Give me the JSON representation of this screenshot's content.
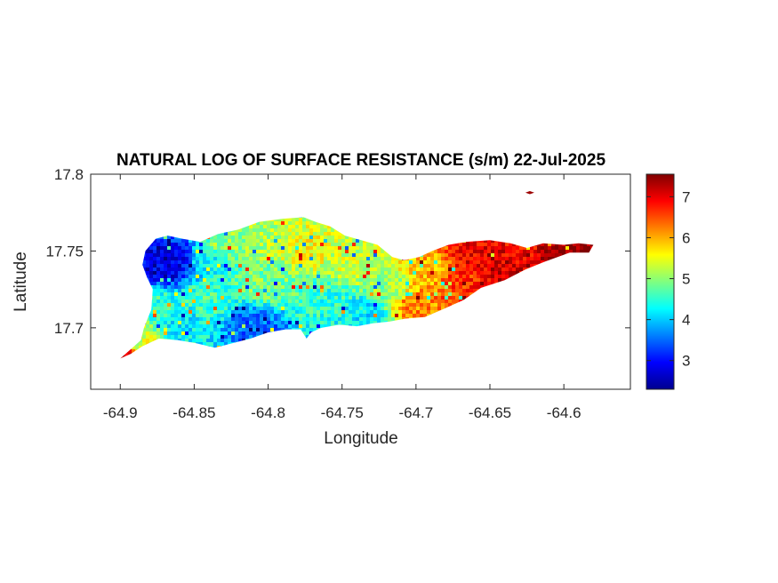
{
  "chart_data": {
    "type": "heatmap",
    "title": "NATURAL LOG OF SURFACE RESISTANCE (s/m) 22-Jul-2025",
    "xlabel": "Longitude",
    "ylabel": "Latitude",
    "xlim": [
      -64.92,
      -64.555
    ],
    "ylim": [
      17.66,
      17.8
    ],
    "x_ticks": [
      -64.9,
      -64.85,
      -64.8,
      -64.75,
      -64.7,
      -64.65,
      -64.6
    ],
    "x_tick_labels": [
      "-64.9",
      "-64.85",
      "-64.8",
      "-64.75",
      "-64.7",
      "-64.65",
      "-64.6"
    ],
    "y_ticks": [
      17.7,
      17.75,
      17.8
    ],
    "y_tick_labels": [
      "17.7",
      "17.75",
      "17.8"
    ],
    "colorbar": {
      "colormap": "jet",
      "range": [
        2.3,
        7.55
      ],
      "ticks": [
        3,
        4,
        5,
        6,
        7
      ],
      "tick_labels": [
        "3",
        "4",
        "5",
        "6",
        "7"
      ]
    },
    "grid": false,
    "island_outline": [
      [
        -64.9,
        17.68
      ],
      [
        -64.893,
        17.686
      ],
      [
        -64.886,
        17.692
      ],
      [
        -64.884,
        17.7
      ],
      [
        -64.879,
        17.712
      ],
      [
        -64.878,
        17.725
      ],
      [
        -64.882,
        17.733
      ],
      [
        -64.885,
        17.741
      ],
      [
        -64.883,
        17.75
      ],
      [
        -64.876,
        17.758
      ],
      [
        -64.868,
        17.76
      ],
      [
        -64.858,
        17.758
      ],
      [
        -64.846,
        17.756
      ],
      [
        -64.834,
        17.761
      ],
      [
        -64.82,
        17.764
      ],
      [
        -64.806,
        17.769
      ],
      [
        -64.79,
        17.771
      ],
      [
        -64.776,
        17.772
      ],
      [
        -64.768,
        17.769
      ],
      [
        -64.758,
        17.766
      ],
      [
        -64.748,
        17.76
      ],
      [
        -64.737,
        17.757
      ],
      [
        -64.726,
        17.754
      ],
      [
        -64.716,
        17.746
      ],
      [
        -64.708,
        17.744
      ],
      [
        -64.698,
        17.746
      ],
      [
        -64.689,
        17.75
      ],
      [
        -64.678,
        17.754
      ],
      [
        -64.666,
        17.756
      ],
      [
        -64.65,
        17.757
      ],
      [
        -64.636,
        17.755
      ],
      [
        -64.625,
        17.752
      ],
      [
        -64.614,
        17.755
      ],
      [
        -64.6,
        17.754
      ],
      [
        -64.59,
        17.755
      ],
      [
        -64.58,
        17.754
      ],
      [
        -64.583,
        17.749
      ],
      [
        -64.596,
        17.749
      ],
      [
        -64.613,
        17.743
      ],
      [
        -64.626,
        17.738
      ],
      [
        -64.64,
        17.731
      ],
      [
        -64.656,
        17.726
      ],
      [
        -64.668,
        17.718
      ],
      [
        -64.682,
        17.712
      ],
      [
        -64.694,
        17.707
      ],
      [
        -64.707,
        17.706
      ],
      [
        -64.718,
        17.704
      ],
      [
        -64.729,
        17.703
      ],
      [
        -64.74,
        17.701
      ],
      [
        -64.752,
        17.702
      ],
      [
        -64.764,
        17.7
      ],
      [
        -64.771,
        17.697
      ],
      [
        -64.774,
        17.693
      ],
      [
        -64.778,
        17.699
      ],
      [
        -64.788,
        17.699
      ],
      [
        -64.8,
        17.697
      ],
      [
        -64.812,
        17.693
      ],
      [
        -64.824,
        17.69
      ],
      [
        -64.836,
        17.687
      ],
      [
        -64.849,
        17.69
      ],
      [
        -64.861,
        17.692
      ],
      [
        -64.874,
        17.693
      ],
      [
        -64.885,
        17.688
      ],
      [
        -64.893,
        17.683
      ]
    ],
    "islet_outline": [
      [
        -64.626,
        17.788
      ],
      [
        -64.623,
        17.789
      ],
      [
        -64.62,
        17.788
      ],
      [
        -64.623,
        17.787
      ]
    ],
    "value_field": [
      {
        "lon": -64.9,
        "lat": 17.68,
        "value": 7.3
      },
      {
        "lon": -64.885,
        "lat": 17.69,
        "value": 5.4
      },
      {
        "lon": -64.878,
        "lat": 17.715,
        "value": 4.5
      },
      {
        "lon": -64.872,
        "lat": 17.74,
        "value": 2.8
      },
      {
        "lon": -64.86,
        "lat": 17.745,
        "value": 2.9
      },
      {
        "lon": -64.86,
        "lat": 17.7,
        "value": 4.2
      },
      {
        "lon": -64.84,
        "lat": 17.72,
        "value": 4.6
      },
      {
        "lon": -64.845,
        "lat": 17.745,
        "value": 4.2
      },
      {
        "lon": -64.83,
        "lat": 17.755,
        "value": 5.0
      },
      {
        "lon": -64.81,
        "lat": 17.7,
        "value": 3.5
      },
      {
        "lon": -64.8,
        "lat": 17.73,
        "value": 4.9
      },
      {
        "lon": -64.8,
        "lat": 17.76,
        "value": 5.2
      },
      {
        "lon": -64.775,
        "lat": 17.75,
        "value": 5.5
      },
      {
        "lon": -64.76,
        "lat": 17.72,
        "value": 4.5
      },
      {
        "lon": -64.745,
        "lat": 17.74,
        "value": 5.3
      },
      {
        "lon": -64.735,
        "lat": 17.71,
        "value": 4.2
      },
      {
        "lon": -64.72,
        "lat": 17.725,
        "value": 5.0
      },
      {
        "lon": -64.7,
        "lat": 17.715,
        "value": 6.2
      },
      {
        "lon": -64.688,
        "lat": 17.735,
        "value": 5.9
      },
      {
        "lon": -64.675,
        "lat": 17.73,
        "value": 6.6
      },
      {
        "lon": -64.66,
        "lat": 17.745,
        "value": 7.0
      },
      {
        "lon": -64.64,
        "lat": 17.74,
        "value": 7.1
      },
      {
        "lon": -64.625,
        "lat": 17.748,
        "value": 6.9
      },
      {
        "lon": -64.605,
        "lat": 17.748,
        "value": 7.5
      },
      {
        "lon": -64.585,
        "lat": 17.752,
        "value": 7.5
      },
      {
        "lon": -64.623,
        "lat": 17.788,
        "value": 7.5
      }
    ]
  }
}
